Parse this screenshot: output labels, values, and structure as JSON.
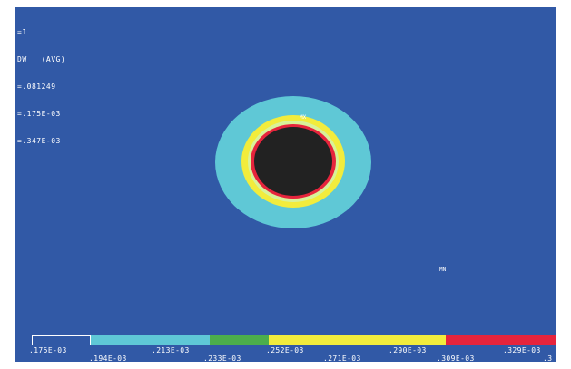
{
  "info": {
    "lines": [
      "=1",
      "DW   (AVG)",
      "=.081249",
      "=.175E-03",
      "=.347E-03"
    ]
  },
  "contour": {
    "colors": {
      "background": "#3159a6",
      "band_outer": "#5fc8d6",
      "band_mid": "#f2ec3c",
      "band_inner": "#d8f29a",
      "ring_red": "#e6243c",
      "hole": "#222222"
    }
  },
  "markers": {
    "max": "MX",
    "min": "MN"
  },
  "legend": {
    "colors": [
      "#3159a6",
      "#5fc8d6",
      "#5fc8d6",
      "#4cae4c",
      "#f2ec3c",
      "#f2ec3c",
      "#f2ec3c",
      "#e6243c"
    ],
    "top_labels": [
      ".175E-03",
      ".213E-03",
      ".252E-03",
      ".290E-03",
      ".329E-03"
    ],
    "bottom_labels": [
      ".194E-03",
      ".233E-03",
      ".271E-03",
      ".309E-03",
      ".3"
    ]
  }
}
